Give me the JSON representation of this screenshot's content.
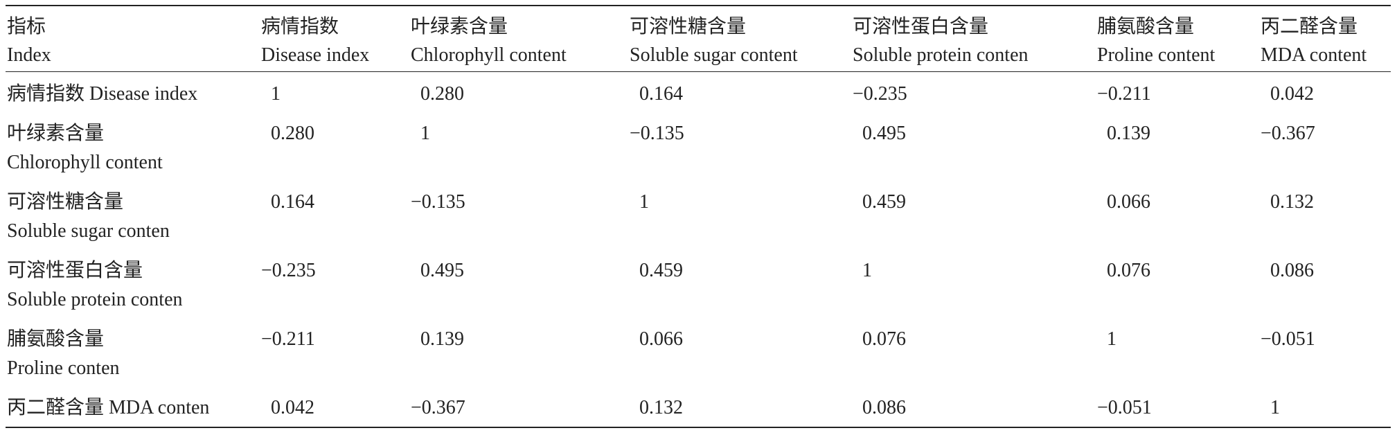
{
  "table": {
    "columns": [
      {
        "zh": "指标",
        "en": "Index"
      },
      {
        "zh": "病情指数",
        "en": "Disease index"
      },
      {
        "zh": "叶绿素含量",
        "en": "Chlorophyll content"
      },
      {
        "zh": "可溶性糖含量",
        "en": "Soluble sugar content"
      },
      {
        "zh": "可溶性蛋白含量",
        "en": "Soluble protein conten"
      },
      {
        "zh": "脯氨酸含量",
        "en": "Proline content"
      },
      {
        "zh": "丙二醛含量",
        "en": "MDA content"
      }
    ],
    "rows": [
      {
        "label": [
          "病情指数 Disease index"
        ],
        "values": [
          "1",
          "0.280",
          "0.164",
          "−0.235",
          "−0.211",
          "0.042"
        ]
      },
      {
        "label": [
          "叶绿素含量",
          "Chlorophyll content"
        ],
        "values": [
          "0.280",
          "1",
          "−0.135",
          "0.495",
          "0.139",
          "−0.367"
        ]
      },
      {
        "label": [
          "可溶性糖含量",
          "Soluble sugar conten"
        ],
        "values": [
          "0.164",
          "−0.135",
          "1",
          "0.459",
          "0.066",
          "0.132"
        ]
      },
      {
        "label": [
          "可溶性蛋白含量",
          "Soluble protein conten"
        ],
        "values": [
          "−0.235",
          "0.495",
          "0.459",
          "1",
          "0.076",
          "0.086"
        ]
      },
      {
        "label": [
          "脯氨酸含量",
          "Proline conten"
        ],
        "values": [
          "−0.211",
          "0.139",
          "0.066",
          "0.076",
          "1",
          "−0.051"
        ]
      },
      {
        "label": [
          "丙二醛含量 MDA conten"
        ],
        "values": [
          "0.042",
          "−0.367",
          "0.132",
          "0.086",
          "−0.051",
          "1"
        ]
      }
    ]
  }
}
